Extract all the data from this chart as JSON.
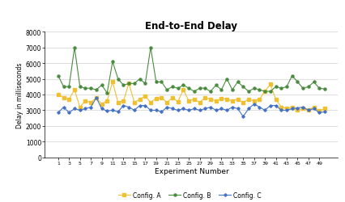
{
  "title": "End-to-End Delay",
  "xlabel": "Experiment Number",
  "ylabel": "Delay in milliseconds",
  "ylim": [
    0,
    8000
  ],
  "yticks": [
    0,
    1000,
    2000,
    3000,
    4000,
    5000,
    6000,
    7000,
    8000
  ],
  "xticks": [
    1,
    3,
    5,
    7,
    9,
    11,
    13,
    15,
    17,
    19,
    21,
    23,
    25,
    27,
    29,
    31,
    33,
    35,
    37,
    39,
    41,
    43,
    45,
    47,
    49
  ],
  "config_A": [
    4000,
    3800,
    3700,
    4300,
    3200,
    3600,
    3500,
    3800,
    3400,
    3600,
    4800,
    3500,
    3600,
    4700,
    3500,
    3700,
    3900,
    3500,
    3750,
    3800,
    3500,
    3800,
    3550,
    4300,
    3600,
    3700,
    3500,
    3800,
    3700,
    3600,
    3750,
    3700,
    3600,
    3700,
    3500,
    3700,
    3600,
    3700,
    4200,
    4650,
    3700,
    3200,
    3100,
    3200,
    3000,
    3100,
    3000,
    3200,
    2950,
    3100
  ],
  "config_B": [
    5200,
    4500,
    4500,
    7000,
    4500,
    4400,
    4400,
    4300,
    4600,
    4100,
    6100,
    5000,
    4600,
    4700,
    4700,
    5000,
    4700,
    7000,
    4800,
    4800,
    4300,
    4500,
    4400,
    4600,
    4400,
    4200,
    4400,
    4400,
    4200,
    4600,
    4300,
    5000,
    4300,
    4800,
    4500,
    4200,
    4400,
    4300,
    4200,
    4200,
    4500,
    4400,
    4500,
    5200,
    4800,
    4400,
    4500,
    4800,
    4400,
    4350
  ],
  "config_C": [
    2850,
    3200,
    2850,
    3100,
    3000,
    3100,
    3200,
    3800,
    3100,
    2950,
    3000,
    2900,
    3300,
    3200,
    3000,
    3300,
    3300,
    3000,
    3000,
    2900,
    3200,
    3100,
    3000,
    3100,
    3000,
    3100,
    3000,
    3100,
    3200,
    3000,
    3100,
    3000,
    3200,
    3100,
    2600,
    3100,
    3400,
    3200,
    3000,
    3300,
    3300,
    3000,
    3000,
    3100,
    3150,
    3200,
    3000,
    3100,
    2850,
    2900
  ],
  "color_A": "#f0c030",
  "color_B": "#4a8c3f",
  "color_C": "#4472c4",
  "legend_A": "Config. A",
  "legend_B": "Config. B",
  "legend_C": "Config. C",
  "bg_color": "#ffffff",
  "grid_color": "#d0d0d0"
}
